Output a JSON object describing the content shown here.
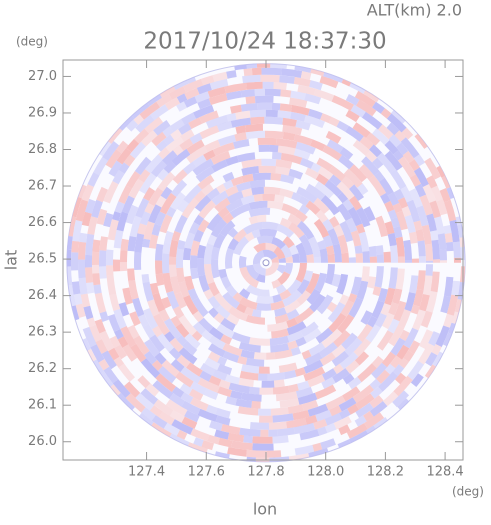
{
  "chart_data": {
    "type": "radar-ppi",
    "altitude_label": "ALT(km) 2.0",
    "title": "2017/10/24 18:37:30",
    "y_unit": "(deg)",
    "x_unit": "(deg)",
    "xlabel": "lon",
    "ylabel": "lat",
    "xlim": [
      127.12,
      128.46
    ],
    "ylim": [
      25.95,
      27.045
    ],
    "xticks": [
      127.4,
      127.6,
      127.8,
      {
        "value": 128.0,
        "label": "128.0"
      },
      128.2,
      128.4
    ],
    "yticks": [
      {
        "value": 26.0,
        "label": "26.0"
      },
      26.1,
      26.2,
      26.3,
      26.4,
      26.5,
      26.6,
      26.7,
      26.8,
      26.9,
      {
        "value": 27.0,
        "label": "27.0"
      }
    ],
    "center": [
      127.8,
      26.49
    ],
    "range_lon": 0.667,
    "colors": {
      "positive": "#f7bcbc",
      "negative": "#bcbcf7"
    }
  }
}
